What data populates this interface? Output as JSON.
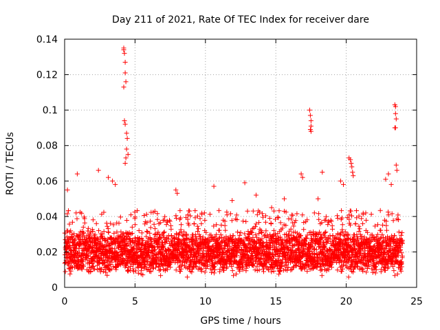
{
  "chart_data": {
    "type": "scatter",
    "title": "Day 211 of 2021, Rate Of TEC Index for receiver dare",
    "xlabel": "GPS time / hours",
    "ylabel": "ROTI / TECUs",
    "xlim": [
      0,
      25
    ],
    "ylim": [
      0,
      0.14
    ],
    "x_ticks": [
      0,
      5,
      10,
      15,
      20,
      25
    ],
    "x_tick_labels": [
      "0",
      "5",
      "10",
      "15",
      "20",
      "25"
    ],
    "y_ticks": [
      0,
      0.02,
      0.04,
      0.06,
      0.08,
      0.1,
      0.12,
      0.14
    ],
    "y_tick_labels": [
      "0",
      "0.02",
      "0.04",
      "0.06",
      "0.08",
      "0.1",
      "0.12",
      "0.14"
    ],
    "grid": true,
    "marker": "+",
    "color": "#ff0000",
    "series": [
      {
        "name": "ROTI",
        "baseline_band": {
          "x_range": [
            0,
            24
          ],
          "typical_y_range": [
            0.005,
            0.04
          ]
        },
        "x": [
          4.2,
          4.2,
          4.25,
          4.3,
          4.3,
          4.35,
          4.2,
          4.25,
          4.3,
          4.4,
          4.45,
          4.4,
          4.5,
          4.35,
          4.3,
          17.4,
          17.45,
          17.5,
          17.5,
          17.45,
          17.5,
          23.45,
          23.5,
          23.5,
          23.55,
          23.45,
          23.5,
          23.55,
          20.2,
          20.3,
          20.35,
          20.4,
          20.45,
          20.5,
          16.8,
          16.9,
          18.3,
          19.6,
          19.8,
          3.1,
          3.4,
          2.4,
          3.6,
          0.2,
          0.9,
          12.8,
          10.6,
          7.9,
          8.0,
          22.8,
          23.0,
          23.2,
          23.6,
          18.0,
          15.6,
          14.7,
          11.9,
          13.6
        ],
        "y": [
          0.134,
          0.135,
          0.132,
          0.127,
          0.121,
          0.116,
          0.113,
          0.094,
          0.092,
          0.087,
          0.084,
          0.078,
          0.075,
          0.073,
          0.07,
          0.1,
          0.097,
          0.094,
          0.091,
          0.089,
          0.088,
          0.103,
          0.102,
          0.098,
          0.095,
          0.09,
          0.09,
          0.069,
          0.073,
          0.072,
          0.07,
          0.068,
          0.065,
          0.063,
          0.064,
          0.062,
          0.065,
          0.06,
          0.058,
          0.062,
          0.06,
          0.066,
          0.058,
          0.055,
          0.064,
          0.059,
          0.057,
          0.055,
          0.053,
          0.061,
          0.064,
          0.058,
          0.066,
          0.05,
          0.05,
          0.045,
          0.049,
          0.052
        ]
      }
    ]
  }
}
